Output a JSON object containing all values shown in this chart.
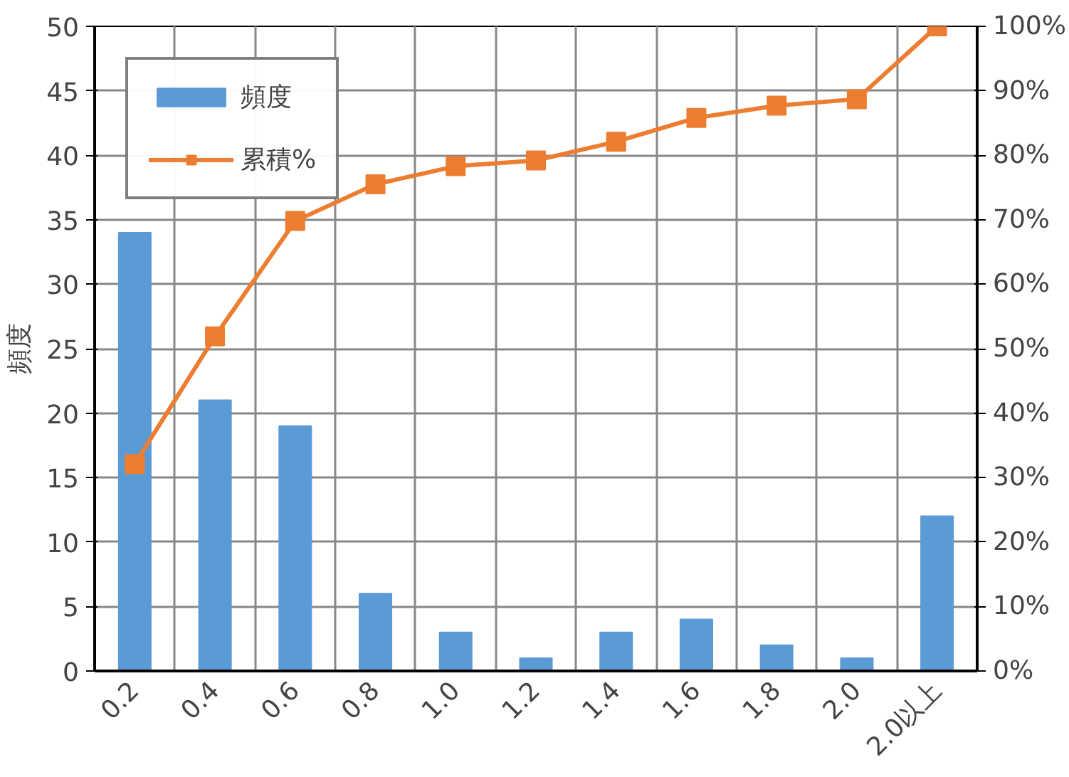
{
  "chart_data": {
    "type": "bar",
    "ylabel": "頻度",
    "categories": [
      "0.2",
      "0.4",
      "0.6",
      "0.8",
      "1.0",
      "1.2",
      "1.4",
      "1.6",
      "1.8",
      "2.0",
      "2.0以上"
    ],
    "series": [
      {
        "name": "頻度",
        "color": "#5b9bd5",
        "values": [
          34,
          21,
          19,
          6,
          3,
          1,
          3,
          4,
          2,
          1,
          12
        ]
      },
      {
        "name": "累積%",
        "type": "line",
        "axis": "y2",
        "color": "#ed7d31",
        "marker": "square",
        "values": [
          32.1,
          51.9,
          69.8,
          75.5,
          78.3,
          79.2,
          82.1,
          85.8,
          87.7,
          88.7,
          100
        ]
      }
    ],
    "ylim": [
      0,
      50
    ],
    "yticks": [
      0,
      5,
      10,
      15,
      20,
      25,
      30,
      35,
      40,
      45,
      50
    ],
    "y2lim": [
      0,
      100
    ],
    "y2ticks": [
      {
        "value": 0,
        "label": "0%"
      },
      {
        "value": 10,
        "label": "10%"
      },
      {
        "value": 20,
        "label": "20%"
      },
      {
        "value": 30,
        "label": "30%"
      },
      {
        "value": 40,
        "label": "40%"
      },
      {
        "value": 50,
        "label": "50%"
      },
      {
        "value": 60,
        "label": "60%"
      },
      {
        "value": 70,
        "label": "70%"
      },
      {
        "value": 80,
        "label": "80%"
      },
      {
        "value": 90,
        "label": "90%"
      },
      {
        "value": 100,
        "label": "100%"
      }
    ],
    "grid": true,
    "legend": "top left"
  }
}
